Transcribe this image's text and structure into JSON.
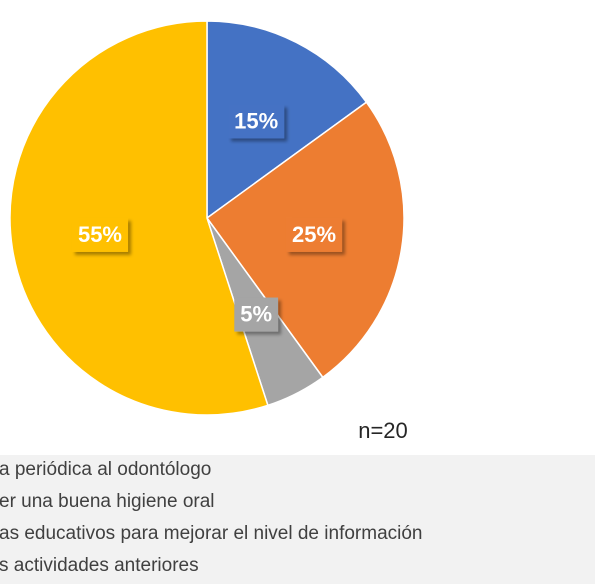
{
  "chart_data": {
    "type": "pie",
    "categories": [
      "a periódica al odontólogo",
      "er una buena higiene oral",
      "as educativos para mejorar el nivel de información",
      "s actividades anteriores"
    ],
    "values": [
      15,
      25,
      5,
      55
    ],
    "value_labels": [
      "15%",
      "25%",
      "5%",
      "55%"
    ],
    "colors": [
      "#4472c4",
      "#ed7d31",
      "#a5a5a5",
      "#ffc000"
    ],
    "annotation": "n=20"
  }
}
